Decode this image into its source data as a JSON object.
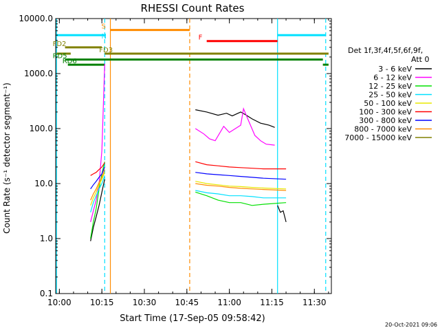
{
  "chart_data": {
    "type": "line",
    "title": "RHESSI Count Rates",
    "xlabel": "Start Time (17-Sep-05 09:58:42)",
    "ylabel": "Count Rate (s⁻¹ detector segment⁻¹)",
    "yscale": "log",
    "ylim": [
      0.1,
      10000.0
    ],
    "xlim": [
      "09:58:42",
      "11:36:00"
    ],
    "x_ticks": [
      "10:00",
      "10:15",
      "10:30",
      "10:45",
      "11:00",
      "11:15",
      "11:30"
    ],
    "y_ticks": [
      "0.1",
      "1.0",
      "10.0",
      "100.0",
      "1000.0",
      "10000.0"
    ],
    "timestamp": "20-Oct-2021 09:06",
    "legend_placement": "right",
    "legend_header": [
      "Det 1f,3f,4f,5f,6f,9f,",
      "Att 0"
    ],
    "series": [
      {
        "name": "3 - 6 keV",
        "color": "#000000",
        "seg1": [
          [
            "10:11",
            0.9
          ],
          [
            "10:12",
            1.6
          ],
          [
            "10:13",
            2.5
          ],
          [
            "10:14",
            4.0
          ],
          [
            "10:15",
            7.0
          ],
          [
            "10:16",
            12.0
          ]
        ],
        "seg2": [
          [
            "10:48",
            220
          ],
          [
            "10:52",
            200
          ],
          [
            "10:56",
            175
          ],
          [
            "10:59",
            190
          ],
          [
            "11:01",
            170
          ],
          [
            "11:04",
            200
          ],
          [
            "11:06",
            175
          ],
          [
            "11:08",
            150
          ],
          [
            "11:11",
            125
          ],
          [
            "11:14",
            115
          ],
          [
            "11:16",
            105
          ]
        ],
        "seg3": [
          [
            "11:17",
            4.0
          ],
          [
            "11:18",
            3.0
          ],
          [
            "11:19",
            3.2
          ],
          [
            "11:20",
            2.0
          ]
        ]
      },
      {
        "name": "6 - 12 keV",
        "color": "#ff00ff",
        "seg1": [
          [
            "10:11",
            2.0
          ],
          [
            "10:12",
            3.2
          ],
          [
            "10:13",
            5.0
          ],
          [
            "10:14",
            10.0
          ],
          [
            "10:15",
            40.0
          ],
          [
            "10:16",
            1500.0
          ]
        ],
        "seg2": [
          [
            "10:48",
            100
          ],
          [
            "10:51",
            80
          ],
          [
            "10:53",
            65
          ],
          [
            "10:55",
            60
          ],
          [
            "10:58",
            110
          ],
          [
            "11:00",
            85
          ],
          [
            "11:04",
            115
          ],
          [
            "11:05",
            230
          ],
          [
            "11:07",
            130
          ],
          [
            "11:09",
            75
          ],
          [
            "11:11",
            60
          ],
          [
            "11:13",
            52
          ],
          [
            "11:16",
            50
          ]
        ]
      },
      {
        "name": "12 - 25 keV",
        "color": "#00e000",
        "seg1": [
          [
            "10:11",
            1.0
          ],
          [
            "10:12",
            2.0
          ],
          [
            "10:13",
            3.5
          ],
          [
            "10:14",
            8.0
          ],
          [
            "10:15",
            15.0
          ],
          [
            "10:16",
            25.0
          ]
        ],
        "seg2": [
          [
            "10:48",
            7.0
          ],
          [
            "10:52",
            6.0
          ],
          [
            "10:56",
            5.0
          ],
          [
            "11:00",
            4.5
          ],
          [
            "11:04",
            4.5
          ],
          [
            "11:08",
            4.0
          ],
          [
            "11:12",
            4.2
          ],
          [
            "11:20",
            4.5
          ]
        ]
      },
      {
        "name": "25 - 50 keV",
        "color": "#00e0ff",
        "seg1": [
          [
            "10:11",
            3.0
          ],
          [
            "10:12",
            4.5
          ],
          [
            "10:13",
            6.0
          ],
          [
            "10:14",
            8.0
          ],
          [
            "10:15",
            10.0
          ],
          [
            "10:16",
            14.0
          ]
        ],
        "seg2": [
          [
            "10:48",
            7.5
          ],
          [
            "10:52",
            6.8
          ],
          [
            "10:56",
            6.5
          ],
          [
            "11:00",
            6.0
          ],
          [
            "11:04",
            6.0
          ],
          [
            "11:08",
            5.8
          ],
          [
            "11:12",
            5.5
          ],
          [
            "11:20",
            5.5
          ]
        ]
      },
      {
        "name": "50 - 100 keV",
        "color": "#e8e800",
        "seg1": [
          [
            "10:11",
            4.0
          ],
          [
            "10:12",
            5.5
          ],
          [
            "10:13",
            7.0
          ],
          [
            "10:14",
            9.5
          ],
          [
            "10:15",
            12.0
          ],
          [
            "10:16",
            16.0
          ]
        ],
        "seg2": [
          [
            "10:48",
            11.0
          ],
          [
            "10:52",
            10.0
          ],
          [
            "10:56",
            9.5
          ],
          [
            "11:00",
            9.0
          ],
          [
            "11:04",
            8.8
          ],
          [
            "11:08",
            8.5
          ],
          [
            "11:12",
            8.3
          ],
          [
            "11:20",
            8.0
          ]
        ]
      },
      {
        "name": "100 - 300 keV",
        "color": "#ff0000",
        "seg1": [
          [
            "10:11",
            14.0
          ],
          [
            "10:12",
            15.0
          ],
          [
            "10:13",
            16.0
          ],
          [
            "10:14",
            18.0
          ],
          [
            "10:15",
            20.0
          ],
          [
            "10:16",
            24.0
          ]
        ],
        "seg2": [
          [
            "10:48",
            25.0
          ],
          [
            "10:52",
            22.0
          ],
          [
            "10:56",
            21.0
          ],
          [
            "11:00",
            20.0
          ],
          [
            "11:04",
            19.5
          ],
          [
            "11:08",
            19.0
          ],
          [
            "11:12",
            18.5
          ],
          [
            "11:20",
            18.5
          ]
        ]
      },
      {
        "name": "300 - 800 keV",
        "color": "#0000ff",
        "seg1": [
          [
            "10:11",
            8.0
          ],
          [
            "10:12",
            9.5
          ],
          [
            "10:13",
            11.0
          ],
          [
            "10:14",
            13.0
          ],
          [
            "10:15",
            15.0
          ],
          [
            "10:16",
            20.0
          ]
        ],
        "seg2": [
          [
            "10:48",
            16.0
          ],
          [
            "10:52",
            15.0
          ],
          [
            "10:56",
            14.5
          ],
          [
            "11:00",
            14.0
          ],
          [
            "11:04",
            13.5
          ],
          [
            "11:08",
            13.0
          ],
          [
            "11:12",
            12.5
          ],
          [
            "11:20",
            12.0
          ]
        ]
      },
      {
        "name": "800 - 7000 keV",
        "color": "#ff8c00",
        "seg1": [
          [
            "10:11",
            5.0
          ],
          [
            "10:12",
            6.5
          ],
          [
            "10:13",
            8.0
          ],
          [
            "10:14",
            10.5
          ],
          [
            "10:15",
            13.0
          ],
          [
            "10:16",
            18.0
          ]
        ],
        "seg2": [
          [
            "10:48",
            10.0
          ],
          [
            "10:52",
            9.3
          ],
          [
            "10:56",
            9.0
          ],
          [
            "11:00",
            8.5
          ],
          [
            "11:04",
            8.2
          ],
          [
            "11:08",
            8.0
          ],
          [
            "11:12",
            7.8
          ],
          [
            "11:20",
            7.5
          ]
        ]
      },
      {
        "name": "7000 - 15000 keV",
        "color": "#808000",
        "seg1": [],
        "seg2": []
      }
    ],
    "vlines": [
      {
        "time": "09:59",
        "color": "#00e0ff",
        "style": "solid"
      },
      {
        "time": "10:16",
        "color": "#00e0ff",
        "style": "dashed"
      },
      {
        "time": "10:18",
        "color": "#ff8c00",
        "style": "solid"
      },
      {
        "time": "10:46",
        "color": "#ff8c00",
        "style": "dashed"
      },
      {
        "time": "11:17",
        "color": "#00e0ff",
        "style": "solid"
      },
      {
        "time": "11:34",
        "color": "#00e0ff",
        "style": "dashed"
      }
    ],
    "flags": [
      {
        "label": "",
        "color": "#00e0ff",
        "y": 5000,
        "t0": "09:59",
        "t1": "10:16"
      },
      {
        "label": "",
        "color": "#00e0ff",
        "y": 5000,
        "t0": "11:17",
        "t1": "11:34"
      },
      {
        "label": "S",
        "color": "#ff8c00",
        "y": 6200,
        "t0": "10:18",
        "t1": "10:46"
      },
      {
        "label": "N",
        "color": "#00e0ff",
        "y": 4600,
        "t0": "10:18",
        "t1": "10:18"
      },
      {
        "label": "F",
        "color": "#ff0000",
        "y": 3900,
        "t0": "10:52",
        "t1": "11:17"
      },
      {
        "label": "FD2",
        "color": "#808000",
        "y": 3000,
        "t0": "10:02",
        "t1": "10:15"
      },
      {
        "label": "FD3",
        "color": "#808000",
        "y": 2300,
        "t0": "10:16",
        "t1": "11:35"
      },
      {
        "label": "",
        "color": "#808000",
        "y": 2300,
        "t0": "09:59",
        "t1": "10:04"
      },
      {
        "label": "RD5",
        "color": "#008000",
        "y": 1800,
        "t0": "10:02",
        "t1": "11:33"
      },
      {
        "label": "RD6",
        "color": "#008000",
        "y": 1450,
        "t0": "10:03",
        "t1": "10:16"
      },
      {
        "label": "",
        "color": "#008000",
        "y": 1450,
        "t0": "11:33",
        "t1": "11:35"
      }
    ]
  }
}
